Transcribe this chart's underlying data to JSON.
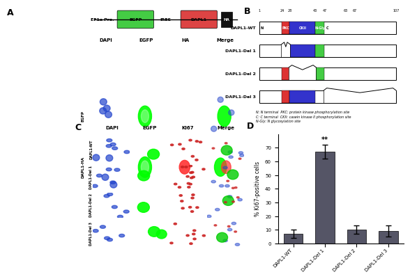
{
  "panel_D": {
    "categories": [
      "DAPL1-WT",
      "DAPL1-Del 1",
      "DAPL1-Del 2",
      "DAPL1-Del 3"
    ],
    "values": [
      7,
      67,
      10,
      9
    ],
    "errors": [
      3,
      5,
      3,
      4
    ],
    "bar_color": "#555566",
    "ylabel": "% Ki67-positive cells",
    "ylim": [
      0,
      80
    ],
    "yticks": [
      0,
      10,
      20,
      30,
      40,
      50,
      60,
      70
    ],
    "significance": [
      "",
      "**",
      "",
      ""
    ]
  },
  "panel_A": {
    "construct_labels": [
      "EF1a Pro.",
      "EGFP",
      "IRES",
      "DAPL1",
      "HA"
    ],
    "construct_colors": [
      "none",
      "#44cc44",
      "#dd4444",
      "#dd4444",
      "#111111"
    ],
    "row_labels": [
      "EGFP",
      "DAPL1-HA"
    ],
    "col_labels": [
      "DAPI",
      "EGFP",
      "HA",
      "Merge"
    ]
  },
  "panel_B": {
    "row_labels": [
      "DAPL1-WT",
      "DAPL1-Del 1",
      "DAPL1-Del 2",
      "DAPL1-Del 3"
    ],
    "domain_colors": {
      "PKC": "#dd3333",
      "CKII": "#3333cc",
      "NGly": "#44cc44"
    },
    "note1": "N: N terminal  PKC: protein kinase phosphorylation site",
    "note2": "C: C terminal  CKII: casein kinase II phosphorylation site",
    "note3": "N-Gly: N glycosylation site"
  },
  "panel_C": {
    "row_labels": [
      "DAPL1-WT",
      "DAPL1-Del 1",
      "DAPL1-Del 2",
      "DAPL1-Del 3"
    ],
    "col_labels": [
      "DAPI",
      "EGFP",
      "Ki67",
      "Merge"
    ]
  },
  "bg_color": "#000000",
  "dapi_color": "#0000aa",
  "egfp_color": "#00cc00",
  "ki67_color": "#cc0000"
}
